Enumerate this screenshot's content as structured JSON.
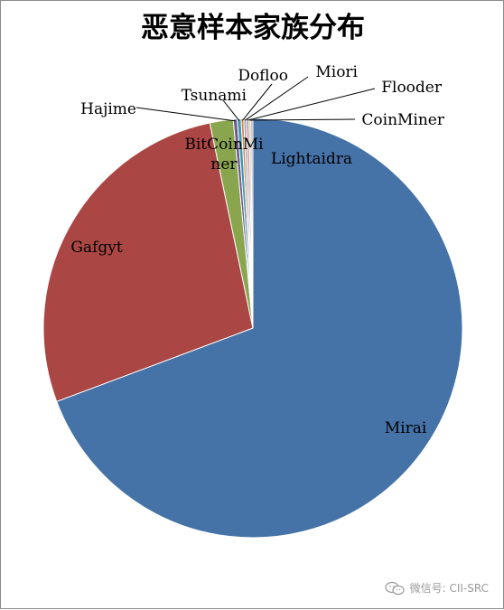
{
  "chart_data": {
    "type": "pie",
    "title": "恶意样本家族分布",
    "slices": [
      {
        "name": "Mirai",
        "value": 69.3,
        "color": "#4572a7"
      },
      {
        "name": "Gafgyt",
        "value": 27.4,
        "color": "#aa4643"
      },
      {
        "name": "BitCoinMiner",
        "value": 1.8,
        "color": "#89a54e"
      },
      {
        "name": "Hajime",
        "value": 0.3,
        "color": "#71588f"
      },
      {
        "name": "Tsunami",
        "value": 0.3,
        "color": "#4198af"
      },
      {
        "name": "Dofloo",
        "value": 0.2,
        "color": "#db843d"
      },
      {
        "name": "Miori",
        "value": 0.2,
        "color": "#93a9cf"
      },
      {
        "name": "Flooder",
        "value": 0.2,
        "color": "#d19392"
      },
      {
        "name": "CoinMiner",
        "value": 0.15,
        "color": "#b9cd96"
      },
      {
        "name": "Lightaidra",
        "value": 0.15,
        "color": "#a99bbd"
      }
    ],
    "legend": "none",
    "data_labels": "category names"
  },
  "watermark": {
    "text": "微信号: CII-SRC",
    "icon": "wechat-icon"
  }
}
